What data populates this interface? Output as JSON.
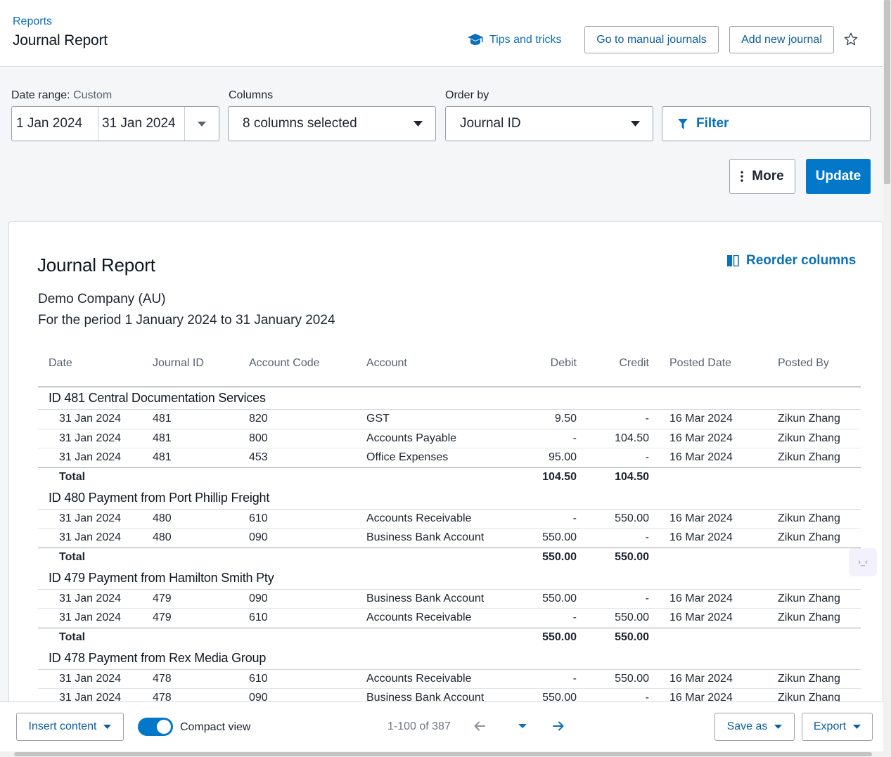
{
  "header": {
    "breadcrumb": "Reports",
    "title": "Journal Report",
    "tips_label": "Tips and tricks",
    "manual_journals_label": "Go to manual journals",
    "add_journal_label": "Add new journal"
  },
  "filters": {
    "date_range_label": "Date range:",
    "date_range_mode": "Custom",
    "start_date": "1 Jan 2024",
    "end_date": "31 Jan 2024",
    "columns_label": "Columns",
    "columns_value": "8 columns selected",
    "order_label": "Order by",
    "order_value": "Journal ID",
    "filter_label": "Filter",
    "more_label": "More",
    "update_label": "Update"
  },
  "report": {
    "title": "Journal Report",
    "reorder_label": "Reorder columns",
    "company": "Demo Company (AU)",
    "period": "For the period 1 January 2024 to 31 January 2024",
    "columns": [
      "Date",
      "Journal ID",
      "Account Code",
      "Account",
      "Debit",
      "Credit",
      "Posted Date",
      "Posted By"
    ],
    "total_label": "Total",
    "groups": [
      {
        "heading": "ID 481 Central Documentation Services",
        "rows": [
          {
            "date": "31 Jan 2024",
            "id": "481",
            "code": "820",
            "account": "GST",
            "debit": "9.50",
            "credit": "-",
            "posted": "16 Mar 2024",
            "by": "Zikun Zhang"
          },
          {
            "date": "31 Jan 2024",
            "id": "481",
            "code": "800",
            "account": "Accounts Payable",
            "debit": "-",
            "credit": "104.50",
            "posted": "16 Mar 2024",
            "by": "Zikun Zhang"
          },
          {
            "date": "31 Jan 2024",
            "id": "481",
            "code": "453",
            "account": "Office Expenses",
            "debit": "95.00",
            "credit": "-",
            "posted": "16 Mar 2024",
            "by": "Zikun Zhang"
          }
        ],
        "total_debit": "104.50",
        "total_credit": "104.50"
      },
      {
        "heading": "ID 480 Payment from Port Phillip Freight",
        "rows": [
          {
            "date": "31 Jan 2024",
            "id": "480",
            "code": "610",
            "account": "Accounts Receivable",
            "debit": "-",
            "credit": "550.00",
            "posted": "16 Mar 2024",
            "by": "Zikun Zhang"
          },
          {
            "date": "31 Jan 2024",
            "id": "480",
            "code": "090",
            "account": "Business Bank Account",
            "debit": "550.00",
            "credit": "-",
            "posted": "16 Mar 2024",
            "by": "Zikun Zhang"
          }
        ],
        "total_debit": "550.00",
        "total_credit": "550.00"
      },
      {
        "heading": "ID 479 Payment from Hamilton Smith Pty",
        "rows": [
          {
            "date": "31 Jan 2024",
            "id": "479",
            "code": "090",
            "account": "Business Bank Account",
            "debit": "550.00",
            "credit": "-",
            "posted": "16 Mar 2024",
            "by": "Zikun Zhang"
          },
          {
            "date": "31 Jan 2024",
            "id": "479",
            "code": "610",
            "account": "Accounts Receivable",
            "debit": "-",
            "credit": "550.00",
            "posted": "16 Mar 2024",
            "by": "Zikun Zhang"
          }
        ],
        "total_debit": "550.00",
        "total_credit": "550.00"
      },
      {
        "heading": "ID 478 Payment from Rex Media Group",
        "rows": [
          {
            "date": "31 Jan 2024",
            "id": "478",
            "code": "610",
            "account": "Accounts Receivable",
            "debit": "-",
            "credit": "550.00",
            "posted": "16 Mar 2024",
            "by": "Zikun Zhang"
          },
          {
            "date": "31 Jan 2024",
            "id": "478",
            "code": "090",
            "account": "Business Bank Account",
            "debit": "550.00",
            "credit": "-",
            "posted": "16 Mar 2024",
            "by": "Zikun Zhang"
          }
        ],
        "total_debit": "",
        "total_credit": ""
      }
    ]
  },
  "footer": {
    "insert_label": "Insert content",
    "compact_label": "Compact view",
    "compact_on": true,
    "page_count": "1-100 of 387",
    "save_as_label": "Save as",
    "export_label": "Export"
  },
  "icons": {
    "tips": "graduation-cap-icon",
    "star": "star-outline-icon",
    "filter": "funnel-icon",
    "more": "vertical-ellipsis-icon",
    "reorder": "columns-icon"
  },
  "colors": {
    "accent": "#0478c8",
    "link": "#0b70b9",
    "band": "#f5f6f7"
  }
}
